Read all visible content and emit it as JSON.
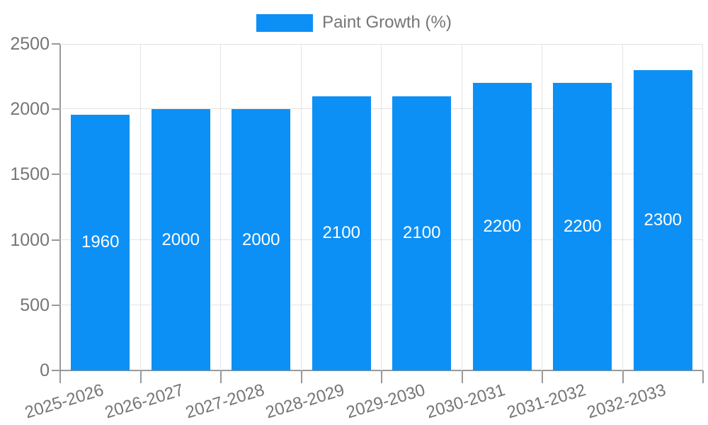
{
  "legend": {
    "label": "Paint Growth (%)"
  },
  "chart_data": {
    "type": "bar",
    "title": "",
    "categories": [
      "2025-2026",
      "2026-2027",
      "2027-2028",
      "2028-2029",
      "2029-2030",
      "2030-2031",
      "2031-2032",
      "2032-2033"
    ],
    "series": [
      {
        "name": "Paint Growth (%)",
        "values": [
          1960,
          2000,
          2000,
          2100,
          2100,
          2200,
          2200,
          2300
        ]
      }
    ],
    "values": [
      1960,
      2000,
      2000,
      2100,
      2100,
      2200,
      2200,
      2300
    ],
    "xlabel": "",
    "ylabel": "",
    "ylim": [
      0,
      2500
    ],
    "yticks": [
      0,
      500,
      1000,
      1500,
      2000,
      2500
    ],
    "grid": true,
    "legend_position": "top-center",
    "x_label_rotation_deg": -17,
    "colors": {
      "bar": "#0D90F5",
      "value_label": "#FFFFFF",
      "axis_line": "#999999",
      "tick": "#999999",
      "gridline": "#E3E3E3",
      "text": "#757575"
    }
  }
}
